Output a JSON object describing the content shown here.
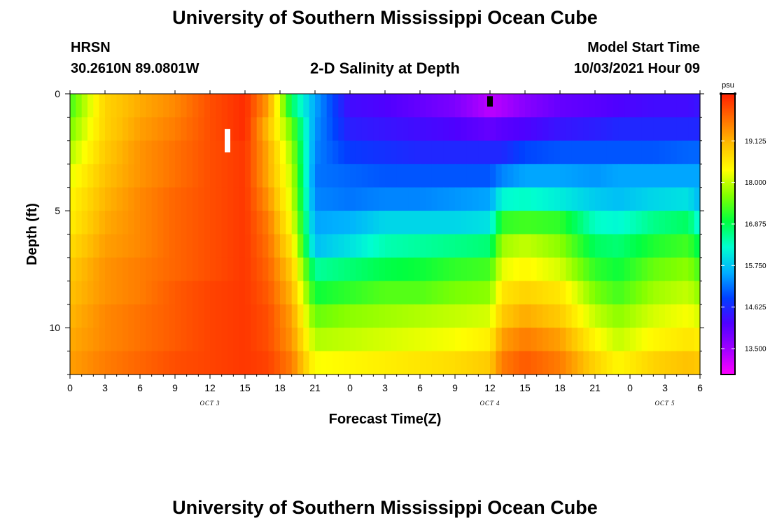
{
  "header": {
    "title": "University of Southern Mississippi Ocean Cube",
    "station": "HRSN",
    "coords": "30.2610N  89.0801W",
    "plot_title": "2-D Salinity at Depth",
    "model_start_label": "Model Start Time",
    "model_start_value": "10/03/2021 Hour 09"
  },
  "footer": {
    "title": "University of Southern Mississippi Ocean Cube"
  },
  "colors": {
    "scale": [
      "#ff00ff",
      "#a000ff",
      "#5000ff",
      "#0040ff",
      "#00b0ff",
      "#00ffd0",
      "#00ff40",
      "#80ff00",
      "#ffff00",
      "#ffc000",
      "#ff7000",
      "#ff2000"
    ]
  },
  "chart_data": {
    "type": "heatmap",
    "title": "2-D Salinity at Depth",
    "xlabel": "Forecast Time(Z)",
    "ylabel": "Depth (ft)",
    "colorbar_unit": "psu",
    "x_ticks": [
      "0",
      "3",
      "6",
      "9",
      "12",
      "15",
      "18",
      "21",
      "0",
      "3",
      "6",
      "9",
      "12",
      "15",
      "18",
      "21",
      "0",
      "3",
      "6"
    ],
    "x_range_hours": [
      0,
      54
    ],
    "date_labels": [
      {
        "hour": 12,
        "text": "OCT 3"
      },
      {
        "hour": 36,
        "text": "OCT 4"
      },
      {
        "hour": 51,
        "text": "OCT 5"
      }
    ],
    "y_ticks": [
      "0",
      "5",
      "10"
    ],
    "y_range_ft": [
      0,
      12
    ],
    "colorbar_ticks": [
      "19.125",
      "18.000",
      "16.875",
      "15.750",
      "14.625",
      "13.500"
    ],
    "colorbar_range": [
      12.8,
      20.4
    ],
    "markers": [
      {
        "hour": 13.5,
        "depth_start": 1.5,
        "depth_end": 2.5,
        "color": "#ffffff"
      },
      {
        "hour": 36,
        "depth_start": 0.1,
        "depth_end": 0.55,
        "color": "#000000"
      }
    ],
    "layer_depths_ft": [
      0.25,
      1.25,
      2.25,
      3.25,
      4.25,
      5.25,
      6.25,
      7.25,
      8.25,
      9.25,
      10.25,
      11.25
    ],
    "time_knots_hours": [
      0,
      3,
      6,
      9,
      12,
      15,
      17,
      19,
      21,
      24,
      27,
      30,
      33,
      36,
      37,
      39,
      42,
      45,
      47,
      50,
      53,
      54
    ],
    "salinity_psu": [
      [
        17.3,
        18.8,
        19.2,
        19.5,
        20.0,
        20.3,
        19.3,
        16.8,
        15.5,
        14.3,
        14.2,
        14.0,
        13.8,
        13.3,
        13.4,
        13.7,
        14.0,
        14.1,
        14.2,
        14.3,
        14.3,
        14.4
      ],
      [
        17.6,
        18.8,
        19.3,
        19.6,
        20.0,
        20.3,
        19.0,
        17.5,
        15.4,
        14.5,
        14.4,
        14.3,
        14.2,
        14.0,
        14.1,
        14.2,
        14.4,
        14.5,
        14.6,
        14.6,
        14.6,
        14.6
      ],
      [
        17.9,
        18.9,
        19.4,
        19.7,
        20.0,
        20.2,
        19.2,
        17.8,
        15.3,
        14.8,
        14.7,
        14.6,
        14.6,
        14.6,
        14.6,
        14.9,
        15.0,
        15.0,
        15.0,
        15.0,
        15.1,
        15.1
      ],
      [
        18.2,
        19.0,
        19.4,
        19.7,
        20.0,
        20.2,
        19.2,
        18.0,
        15.2,
        15.1,
        15.0,
        15.0,
        15.0,
        15.0,
        15.3,
        15.5,
        15.5,
        15.4,
        15.5,
        15.5,
        15.5,
        15.5
      ],
      [
        18.4,
        19.1,
        19.5,
        19.8,
        20.0,
        20.2,
        19.4,
        18.1,
        15.3,
        15.2,
        15.3,
        15.3,
        15.4,
        15.5,
        16.2,
        16.3,
        16.1,
        15.8,
        15.7,
        15.9,
        16.0,
        15.6
      ],
      [
        18.5,
        19.2,
        19.5,
        19.8,
        20.0,
        20.2,
        19.6,
        18.3,
        15.5,
        15.6,
        15.9,
        15.9,
        15.9,
        16.0,
        17.2,
        17.3,
        17.2,
        16.3,
        16.2,
        16.6,
        16.8,
        16.1
      ],
      [
        18.7,
        19.3,
        19.5,
        19.8,
        20.0,
        20.2,
        19.7,
        18.6,
        15.7,
        16.0,
        16.4,
        16.5,
        16.6,
        16.7,
        17.8,
        18.0,
        17.7,
        16.8,
        16.7,
        17.1,
        17.3,
        16.8
      ],
      [
        18.9,
        19.4,
        19.6,
        19.8,
        20.0,
        20.2,
        19.8,
        18.9,
        16.5,
        16.7,
        16.9,
        17.0,
        17.2,
        17.3,
        18.2,
        18.4,
        18.1,
        17.2,
        17.0,
        17.5,
        17.7,
        17.3
      ],
      [
        19.0,
        19.4,
        19.6,
        19.9,
        20.1,
        20.2,
        19.9,
        19.1,
        17.0,
        17.2,
        17.4,
        17.4,
        17.6,
        17.7,
        18.6,
        18.8,
        18.6,
        17.6,
        17.3,
        17.8,
        18.0,
        17.7
      ],
      [
        19.1,
        19.5,
        19.7,
        19.9,
        20.1,
        20.2,
        20.0,
        19.3,
        17.5,
        17.7,
        17.8,
        17.9,
        18.0,
        18.1,
        18.9,
        19.2,
        18.9,
        18.0,
        17.7,
        18.1,
        18.3,
        18.1
      ],
      [
        19.2,
        19.5,
        19.7,
        19.9,
        20.1,
        20.2,
        20.0,
        19.4,
        17.9,
        18.0,
        18.1,
        18.2,
        18.3,
        18.5,
        19.3,
        19.6,
        19.3,
        18.4,
        18.0,
        18.4,
        18.6,
        18.5
      ],
      [
        19.3,
        19.6,
        19.8,
        20.0,
        20.1,
        20.2,
        20.1,
        19.6,
        18.3,
        18.4,
        18.5,
        18.6,
        18.7,
        18.9,
        19.6,
        19.9,
        19.6,
        18.8,
        18.4,
        18.8,
        19.0,
        18.9
      ]
    ]
  }
}
